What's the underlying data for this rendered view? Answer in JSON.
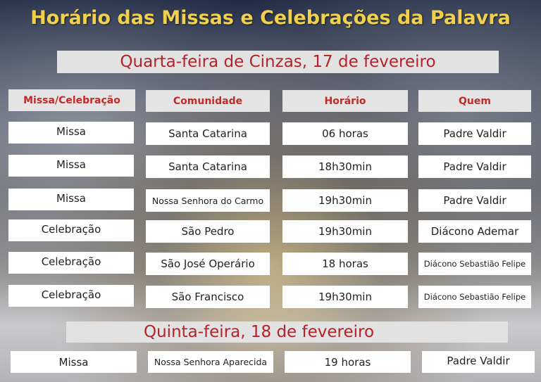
{
  "title": "Horário das Missas e Celebrações da Palavra",
  "day1": {
    "heading": "Quarta-feira de Cinzas, 17 de fevereiro",
    "headers": [
      "Missa/Celebração",
      "Comunidade",
      "Horário",
      "Quem"
    ],
    "rows": [
      [
        "Missa",
        "Santa Catarina",
        "06 horas",
        "Padre Valdir"
      ],
      [
        "Missa",
        "Santa Catarina",
        "18h30min",
        "Padre Valdir"
      ],
      [
        "Missa",
        "Nossa Senhora do Carmo",
        "19h30min",
        "Padre Valdir"
      ],
      [
        "Celebração",
        "São Pedro",
        "19h30min",
        "Diácono Ademar"
      ],
      [
        "Celebração",
        "São José Operário",
        "18 horas",
        "Diácono Sebastião Felipe"
      ],
      [
        "Celebração",
        "São Francisco",
        "19h30min",
        "Diácono Sebastião Felipe"
      ]
    ]
  },
  "day2": {
    "heading": "Quinta-feira, 18 de fevereiro",
    "rows": [
      [
        "Missa",
        "Nossa Senhora Aparecida",
        "19 horas",
        "Padre Valdir"
      ]
    ]
  }
}
